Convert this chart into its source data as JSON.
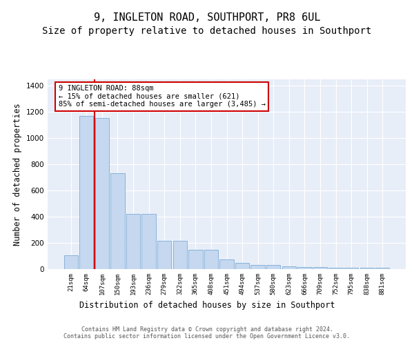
{
  "title": "9, INGLETON ROAD, SOUTHPORT, PR8 6UL",
  "subtitle": "Size of property relative to detached houses in Southport",
  "xlabel": "Distribution of detached houses by size in Southport",
  "ylabel": "Number of detached properties",
  "categories": [
    "21sqm",
    "64sqm",
    "107sqm",
    "150sqm",
    "193sqm",
    "236sqm",
    "279sqm",
    "322sqm",
    "365sqm",
    "408sqm",
    "451sqm",
    "494sqm",
    "537sqm",
    "580sqm",
    "623sqm",
    "666sqm",
    "709sqm",
    "752sqm",
    "795sqm",
    "838sqm",
    "881sqm"
  ],
  "values": [
    108,
    1170,
    1155,
    735,
    420,
    420,
    215,
    215,
    150,
    150,
    75,
    50,
    30,
    30,
    20,
    15,
    15,
    10,
    10,
    10,
    10
  ],
  "bar_color": "#c5d8f0",
  "bar_edge_color": "#7aaad4",
  "red_line_x": 1.5,
  "annotation_text": "9 INGLETON ROAD: 88sqm\n← 15% of detached houses are smaller (621)\n85% of semi-detached houses are larger (3,485) →",
  "annotation_box_color": "#ffffff",
  "annotation_border_color": "#cc0000",
  "ylim": [
    0,
    1450
  ],
  "yticks": [
    0,
    200,
    400,
    600,
    800,
    1000,
    1200,
    1400
  ],
  "footer_text": "Contains HM Land Registry data © Crown copyright and database right 2024.\nContains public sector information licensed under the Open Government Licence v3.0.",
  "background_color": "#e8eef8",
  "grid_color": "#ffffff",
  "title_fontsize": 11,
  "subtitle_fontsize": 10,
  "xlabel_fontsize": 8.5,
  "ylabel_fontsize": 8.5
}
